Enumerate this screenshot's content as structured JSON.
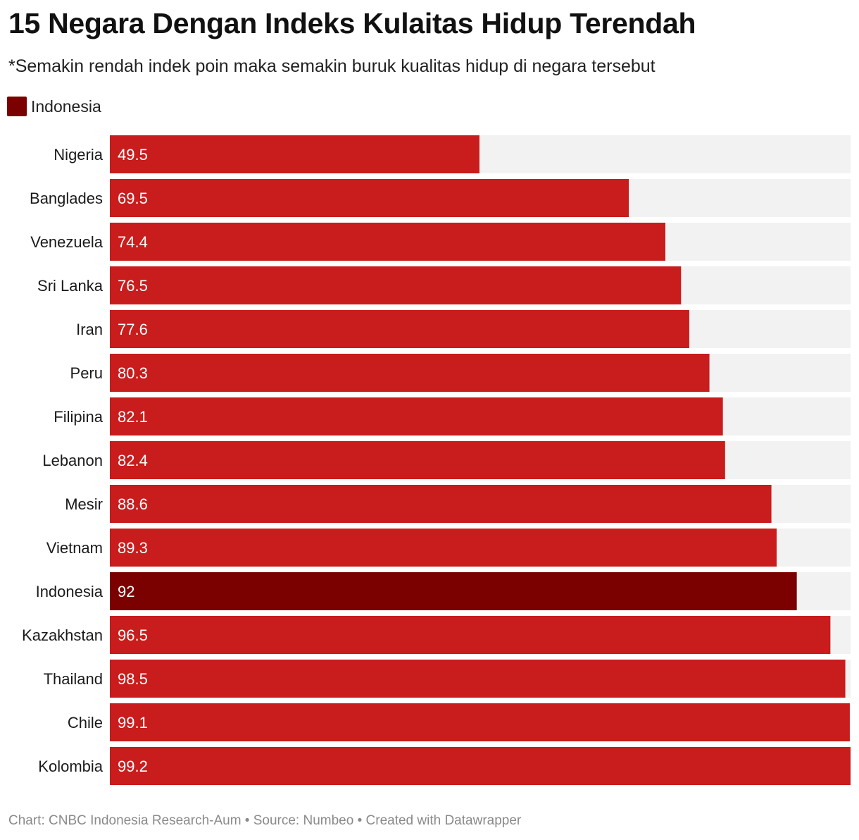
{
  "title": "15 Negara Dengan Indeks Kulaitas Hidup Terendah",
  "subtitle": "*Semakin rendah indek poin maka semakin buruk kualitas hidup di negara tersebut",
  "legend": {
    "label": "Indonesia",
    "color": "#7b0000"
  },
  "colors": {
    "bar": "#c91c1c",
    "highlight": "#7b0000",
    "track": "#f2f2f2",
    "value_text": "#ffffff"
  },
  "footer": "Chart: CNBC Indonesia Research-Aum • Source: Numbeo • Created with Datawrapper",
  "chart_data": {
    "type": "bar",
    "orientation": "horizontal",
    "categories": [
      "Nigeria",
      "Banglades",
      "Venezuela",
      "Sri Lanka",
      "Iran",
      "Peru",
      "Filipina",
      "Lebanon",
      "Mesir",
      "Vietnam",
      "Indonesia",
      "Kazakhstan",
      "Thailand",
      "Chile",
      "Kolombia"
    ],
    "values": [
      49.5,
      69.5,
      74.4,
      76.5,
      77.6,
      80.3,
      82.1,
      82.4,
      88.6,
      89.3,
      92,
      96.5,
      98.5,
      99.1,
      99.2
    ],
    "value_labels": [
      "49.5",
      "69.5",
      "74.4",
      "76.5",
      "77.6",
      "80.3",
      "82.1",
      "82.4",
      "88.6",
      "89.3",
      "92",
      "96.5",
      "98.5",
      "99.1",
      "99.2"
    ],
    "highlight": "Indonesia",
    "xlim": [
      0,
      99.2
    ],
    "grid": false,
    "legend_position": "top-left"
  }
}
